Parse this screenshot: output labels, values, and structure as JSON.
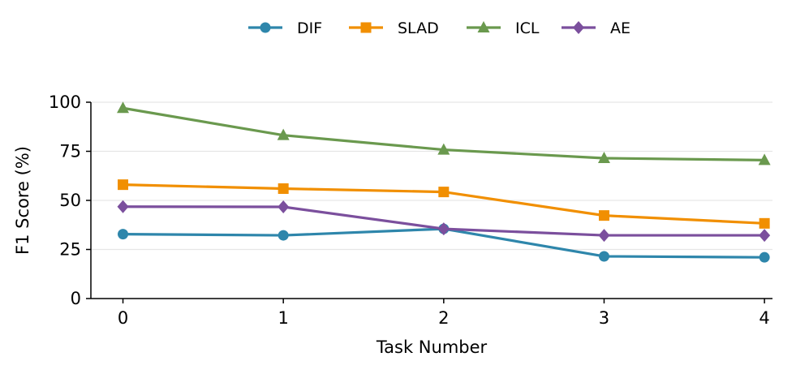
{
  "chart_data": {
    "type": "line",
    "title": "",
    "xlabel": "Task Number",
    "ylabel": "F1 Score (%)",
    "x": [
      0,
      1,
      2,
      3,
      4
    ],
    "x_tick_labels": [
      "0",
      "1",
      "2",
      "3",
      "4"
    ],
    "y_tick_values": [
      0,
      25,
      50,
      75,
      100
    ],
    "y_tick_labels": [
      "0",
      "25",
      "50",
      "75",
      "100"
    ],
    "xlim": [
      -0.2,
      4.05
    ],
    "ylim": [
      0,
      100
    ],
    "grid": "y-major",
    "legend_position": "top-center",
    "series": [
      {
        "name": "DIF",
        "color": "#2e86ab",
        "marker": "circle",
        "values": [
          32.8,
          32.2,
          35.5,
          21.5,
          21.0
        ]
      },
      {
        "name": "SLAD",
        "color": "#f18f01",
        "marker": "square",
        "values": [
          58.0,
          56.0,
          54.3,
          42.3,
          38.3
        ]
      },
      {
        "name": "ICL",
        "color": "#6a994e",
        "marker": "triangle",
        "values": [
          97.0,
          83.2,
          75.8,
          71.5,
          70.5
        ]
      },
      {
        "name": "AE",
        "color": "#7b4f9d",
        "marker": "diamond",
        "values": [
          46.8,
          46.7,
          35.5,
          32.2,
          32.2
        ]
      }
    ]
  }
}
